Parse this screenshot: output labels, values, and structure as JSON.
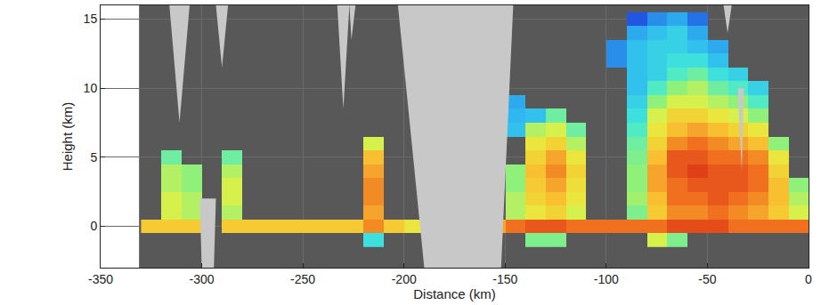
{
  "chart_data": {
    "type": "heatmap",
    "xlabel": "Distance (km)",
    "ylabel": "Height (km)",
    "xlim": [
      -350,
      0
    ],
    "ylim": [
      -3,
      16
    ],
    "xticks": [
      -350,
      -300,
      -250,
      -200,
      -150,
      -100,
      -50,
      0
    ],
    "yticks": [
      0,
      5,
      10,
      15
    ],
    "grid": true,
    "zlim": [
      -30,
      20
    ],
    "data_xlim": [
      -331,
      0
    ],
    "x": [
      -325,
      -315,
      -305,
      -295,
      -285,
      -275,
      -265,
      -255,
      -245,
      -235,
      -225,
      -215,
      -205,
      -195,
      -185,
      -175,
      -165,
      -155,
      -145,
      -135,
      -125,
      -115,
      -105,
      -95,
      -85,
      -75,
      -65,
      -55,
      -45,
      -35,
      -25,
      -15,
      -5
    ],
    "y": [
      -1,
      0,
      1,
      2,
      3,
      4,
      5,
      6,
      7,
      8,
      9,
      10,
      11,
      12,
      13,
      14,
      15
    ],
    "z": [
      [
        null,
        null,
        null,
        null,
        null,
        null,
        null,
        null,
        null,
        null,
        null,
        -10,
        null,
        null,
        null,
        null,
        null,
        null,
        null,
        -5,
        -5,
        null,
        null,
        null,
        null,
        0,
        -5,
        null,
        null,
        null,
        null,
        null,
        null
      ],
      [
        5,
        5,
        5,
        null,
        5,
        5,
        5,
        5,
        5,
        5,
        5,
        10,
        5,
        2,
        null,
        null,
        null,
        8,
        12,
        14,
        14,
        12,
        12,
        12,
        12,
        12,
        15,
        15,
        15,
        12,
        12,
        12,
        12
      ],
      [
        null,
        0,
        -2,
        null,
        -2,
        null,
        null,
        null,
        null,
        null,
        null,
        8,
        null,
        null,
        null,
        null,
        null,
        null,
        -2,
        2,
        4,
        0,
        null,
        null,
        -5,
        5,
        10,
        10,
        12,
        10,
        8,
        5,
        0
      ],
      [
        null,
        0,
        -2,
        null,
        0,
        null,
        null,
        null,
        null,
        null,
        null,
        10,
        null,
        null,
        null,
        null,
        null,
        null,
        -2,
        4,
        6,
        2,
        null,
        null,
        -3,
        6,
        12,
        12,
        14,
        12,
        10,
        6,
        -2
      ],
      [
        null,
        -2,
        -4,
        null,
        0,
        null,
        null,
        null,
        null,
        null,
        null,
        10,
        null,
        null,
        null,
        null,
        null,
        null,
        -4,
        5,
        8,
        3,
        null,
        null,
        -4,
        8,
        12,
        14,
        14,
        14,
        12,
        6,
        -4
      ],
      [
        null,
        -2,
        -4,
        null,
        -2,
        null,
        null,
        null,
        null,
        null,
        null,
        8,
        null,
        null,
        null,
        null,
        null,
        null,
        -4,
        6,
        10,
        4,
        null,
        null,
        -4,
        8,
        14,
        16,
        14,
        14,
        12,
        4,
        null
      ],
      [
        null,
        -6,
        null,
        null,
        -6,
        null,
        null,
        null,
        null,
        null,
        null,
        6,
        null,
        null,
        null,
        null,
        null,
        null,
        null,
        4,
        8,
        2,
        null,
        null,
        -5,
        6,
        14,
        14,
        12,
        12,
        10,
        2,
        null
      ],
      [
        null,
        null,
        null,
        null,
        null,
        null,
        null,
        null,
        null,
        null,
        null,
        0,
        null,
        null,
        null,
        null,
        null,
        null,
        null,
        2,
        4,
        -2,
        null,
        null,
        -6,
        4,
        10,
        12,
        10,
        8,
        6,
        -4,
        null
      ],
      [
        null,
        null,
        null,
        null,
        null,
        null,
        null,
        null,
        null,
        null,
        null,
        null,
        null,
        null,
        null,
        null,
        null,
        null,
        -14,
        -2,
        0,
        -6,
        null,
        null,
        -8,
        2,
        6,
        8,
        6,
        4,
        2,
        null,
        null
      ],
      [
        null,
        null,
        null,
        null,
        null,
        null,
        null,
        null,
        null,
        null,
        null,
        null,
        null,
        null,
        null,
        null,
        null,
        -15,
        -15,
        -14,
        -6,
        null,
        null,
        null,
        -10,
        0,
        4,
        4,
        2,
        0,
        -4,
        null,
        null
      ],
      [
        null,
        null,
        null,
        null,
        null,
        null,
        null,
        null,
        null,
        null,
        null,
        null,
        null,
        null,
        null,
        null,
        null,
        -18,
        -16,
        null,
        null,
        null,
        null,
        null,
        -12,
        -4,
        0,
        0,
        -2,
        -4,
        -8,
        null,
        null
      ],
      [
        null,
        null,
        null,
        null,
        null,
        null,
        null,
        null,
        null,
        null,
        null,
        null,
        null,
        null,
        null,
        null,
        null,
        null,
        null,
        null,
        null,
        null,
        null,
        null,
        -14,
        -8,
        -4,
        -2,
        -6,
        -8,
        -12,
        null,
        null
      ],
      [
        null,
        null,
        null,
        null,
        null,
        null,
        null,
        null,
        null,
        null,
        null,
        null,
        null,
        null,
        null,
        null,
        null,
        null,
        null,
        null,
        null,
        null,
        null,
        null,
        -14,
        -12,
        -8,
        -6,
        -10,
        -12,
        null,
        null,
        null
      ],
      [
        null,
        null,
        null,
        null,
        null,
        null,
        null,
        null,
        null,
        null,
        null,
        null,
        null,
        null,
        null,
        null,
        null,
        null,
        null,
        null,
        null,
        null,
        null,
        -18,
        -14,
        -12,
        -10,
        -10,
        -14,
        null,
        null,
        null,
        null
      ],
      [
        null,
        null,
        null,
        null,
        null,
        null,
        null,
        null,
        null,
        null,
        null,
        null,
        null,
        null,
        null,
        null,
        null,
        null,
        null,
        null,
        null,
        null,
        null,
        -18,
        -14,
        -12,
        -12,
        -14,
        -16,
        null,
        null,
        null,
        null
      ],
      [
        null,
        null,
        null,
        null,
        null,
        null,
        null,
        null,
        null,
        null,
        null,
        null,
        null,
        null,
        null,
        null,
        null,
        null,
        null,
        null,
        null,
        null,
        null,
        null,
        -16,
        -14,
        -12,
        -16,
        null,
        null,
        null,
        null,
        null
      ],
      [
        null,
        null,
        null,
        null,
        null,
        null,
        null,
        null,
        null,
        null,
        null,
        null,
        null,
        null,
        null,
        null,
        null,
        null,
        null,
        null,
        null,
        null,
        null,
        null,
        -22,
        -18,
        -16,
        -20,
        null,
        null,
        null,
        null,
        null
      ]
    ],
    "no_data": [
      {
        "x": [
          -203,
          -146,
          -152,
          -190
        ],
        "y": [
          16,
          16,
          -3,
          -3
        ]
      },
      {
        "x": [
          -316,
          -306,
          -311
        ],
        "y": [
          16,
          16,
          7.5
        ]
      },
      {
        "x": [
          -293,
          -287,
          -290
        ],
        "y": [
          16,
          16,
          11.5
        ]
      },
      {
        "x": [
          -233,
          -227,
          -230
        ],
        "y": [
          16,
          16,
          8.5
        ]
      },
      {
        "x": [
          -227,
          -224,
          -226
        ],
        "y": [
          16,
          16,
          13.5
        ]
      },
      {
        "x": [
          -301,
          -293,
          -294,
          -300
        ],
        "y": [
          2,
          2,
          -3,
          -3
        ]
      },
      {
        "x": [
          -42,
          -38,
          -40
        ],
        "y": [
          16,
          16,
          14
        ]
      },
      {
        "x": [
          -35,
          -32,
          -33
        ],
        "y": [
          10,
          10,
          4
        ]
      }
    ]
  }
}
